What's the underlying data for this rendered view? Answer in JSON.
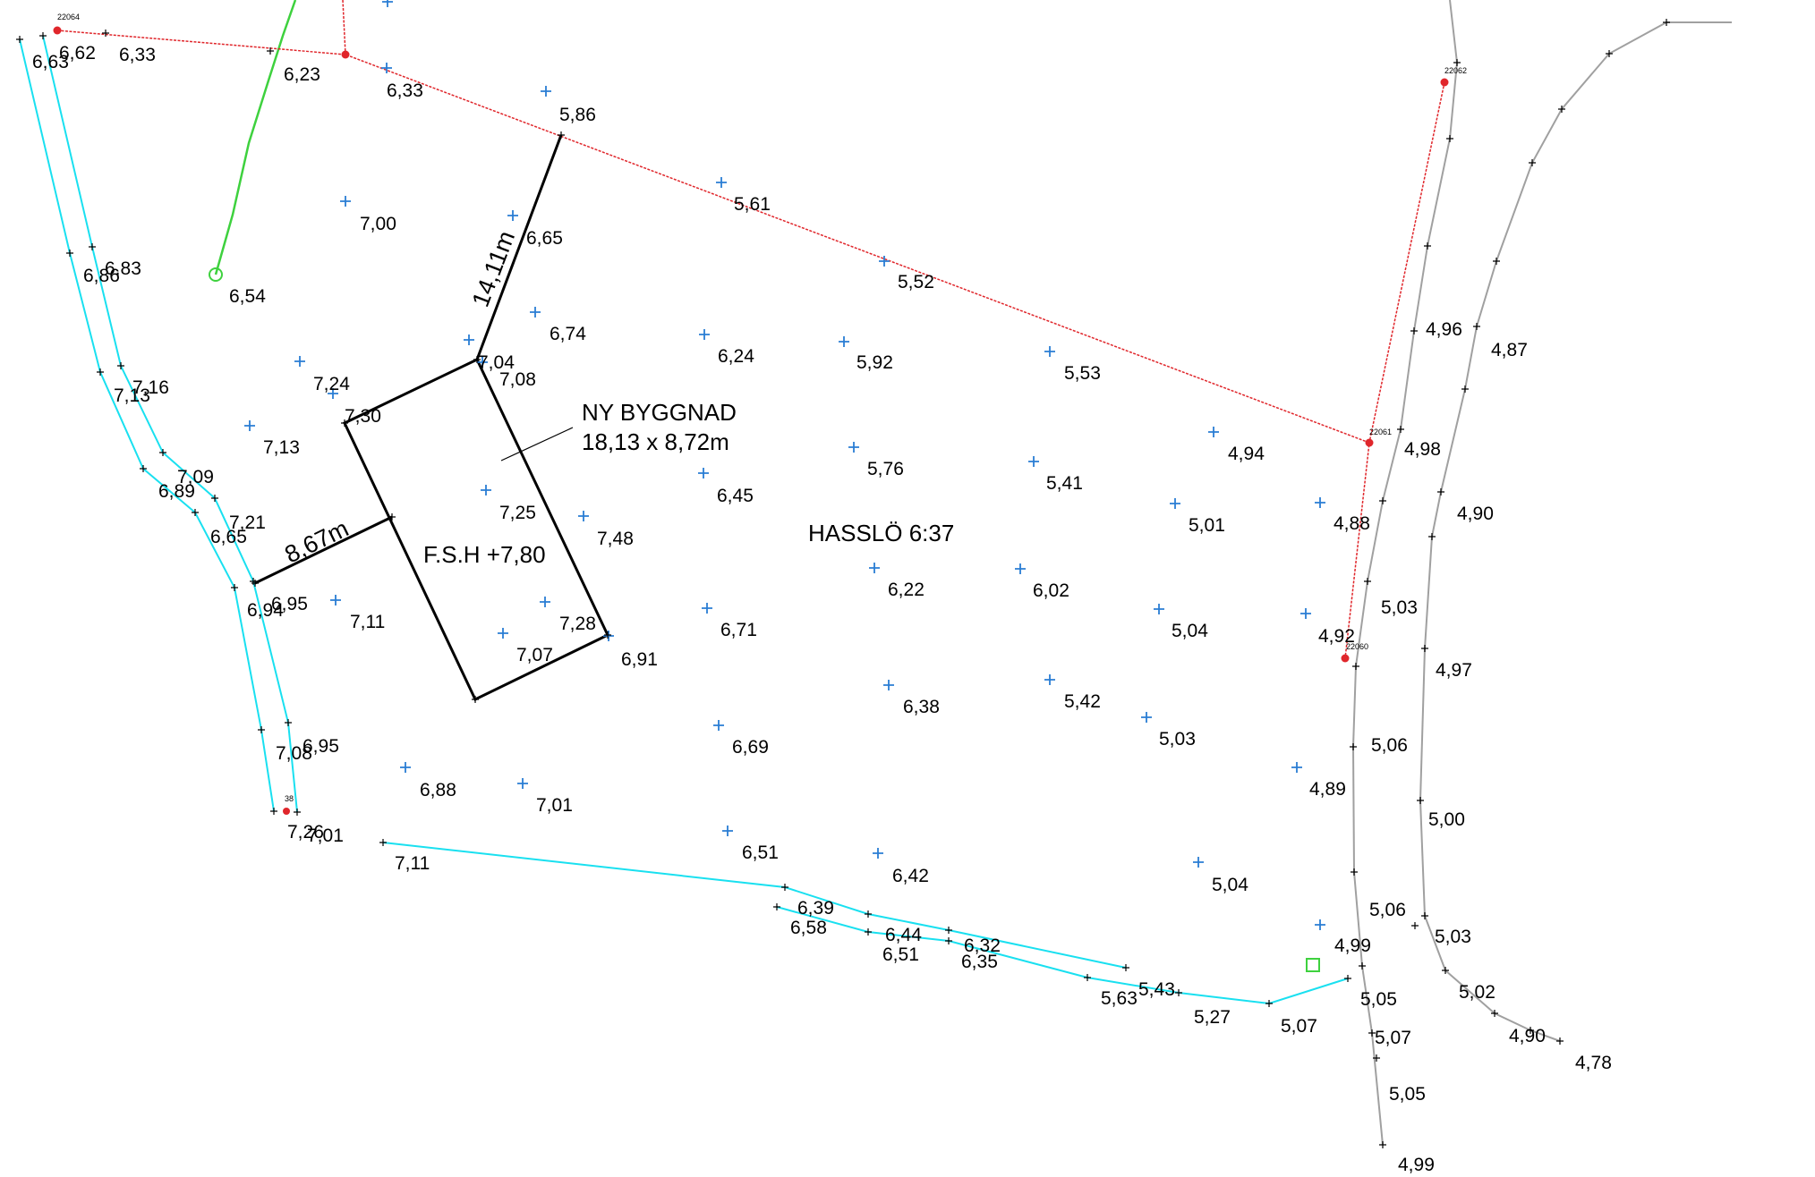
{
  "map": {
    "property_name": "HASSLÖ 6:37",
    "building": {
      "title": "NY BYGGNAD",
      "dimensions": "18,13 x 8,72m",
      "floor_level": "F.S.H +7,80",
      "dim_long": "14,11m",
      "dim_short": "8,67m"
    },
    "colors": {
      "boundary": "#e0262b",
      "road_edge": "#19e0f0",
      "gravel_edge": "#9e9e9e",
      "hedge": "#3ed13e",
      "building": "#000000",
      "survey_point": "#2a7dd4"
    },
    "boundary_point_ids": [
      "22064",
      "22062",
      "22061",
      "22060",
      "38"
    ],
    "elevations_survey": [
      "7,00",
      "6,65",
      "5,86",
      "5,61",
      "5,52",
      "6,74",
      "7,04",
      "7,08",
      "6,24",
      "5,92",
      "5,53",
      "7,24",
      "7,30",
      "7,13",
      "5,76",
      "5,41",
      "4,94",
      "7,25",
      "7,48",
      "6,45",
      "5,01",
      "4,88",
      "6,22",
      "6,02",
      "7,11",
      "7,28",
      "7,07",
      "6,91",
      "6,71",
      "5,04",
      "4,92",
      "6,38",
      "5,42",
      "6,69",
      "5,03",
      "6,88",
      "7,01",
      "6,51",
      "6,42",
      "4,89",
      "5,04",
      "6,54",
      "6,33"
    ],
    "elevations_line": [
      "6,63",
      "6,62",
      "6,33",
      "6,23",
      "6,86",
      "6,83",
      "7,13",
      "7,16",
      "6,89",
      "7,09",
      "6,65",
      "7,21",
      "6,94",
      "6,95",
      "7,08",
      "6,95",
      "7,26",
      "7,01",
      "7,11",
      "6,39",
      "6,58",
      "6,44",
      "6,51",
      "6,32",
      "6,35",
      "5,63",
      "5,43",
      "5,27",
      "5,07",
      "4,99",
      "5,05",
      "5,07",
      "5,05",
      "4,99",
      "4,96",
      "4,87",
      "4,98",
      "4,90",
      "5,03",
      "4,97",
      "5,06",
      "5,00",
      "5,06",
      "5,03",
      "5,02",
      "4,90",
      "4,78"
    ]
  }
}
